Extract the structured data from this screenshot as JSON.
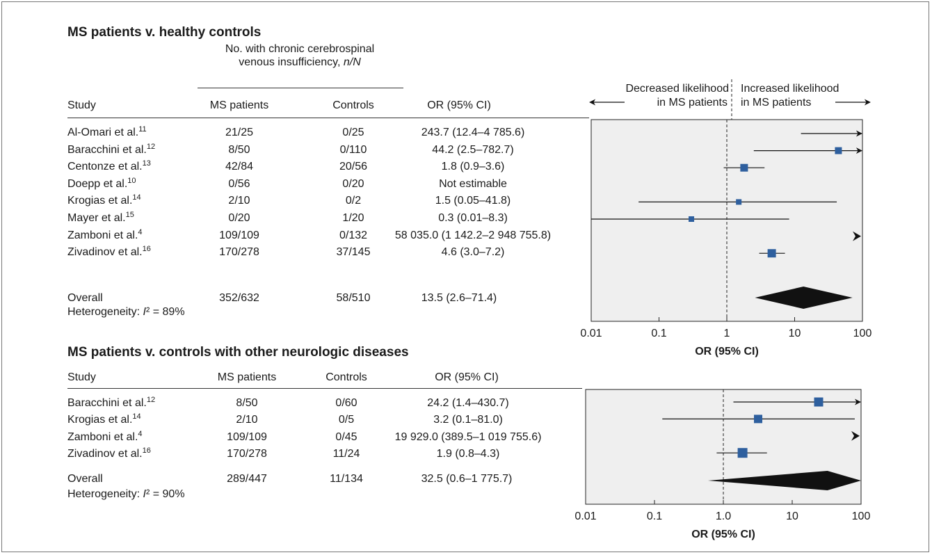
{
  "chart_data": [
    {
      "type": "table",
      "title": "MS patients v. healthy controls",
      "group_header": "No. with chronic cerebrospinal",
      "group_header_line2_prefix": "venous insufficiency, ",
      "group_header_line2_italic": "n/N",
      "columns": [
        "Study",
        "MS patients",
        "Controls",
        "OR (95% CI)"
      ],
      "direction_labels": {
        "left_line1": "Decreased likelihood",
        "left_line2": "in MS patients",
        "right_line1": "Increased likelihood",
        "right_line2": "in MS patients"
      },
      "rows": [
        {
          "study": "Al-Omari et al.",
          "ref": "11",
          "ms": "21/25",
          "controls": "0/25",
          "or_text": "243.7 (12.4–4 785.6)",
          "or": 243.7,
          "lo": 12.4,
          "hi": 4785.6
        },
        {
          "study": "Baracchini et al.",
          "ref": "12",
          "ms": "8/50",
          "controls": "0/110",
          "or_text": "44.2 (2.5–782.7)",
          "or": 44.2,
          "lo": 2.5,
          "hi": 782.7
        },
        {
          "study": "Centonze et al.",
          "ref": "13",
          "ms": "42/84",
          "controls": "20/56",
          "or_text": "1.8 (0.9–3.6)",
          "or": 1.8,
          "lo": 0.9,
          "hi": 3.6
        },
        {
          "study": "Doepp et al.",
          "ref": "10",
          "ms": "0/56",
          "controls": "0/20",
          "or_text": "Not estimable",
          "or": null,
          "lo": null,
          "hi": null
        },
        {
          "study": "Krogias et al.",
          "ref": "14",
          "ms": "2/10",
          "controls": "0/2",
          "or_text": "1.5 (0.05–41.8)",
          "or": 1.5,
          "lo": 0.05,
          "hi": 41.8
        },
        {
          "study": "Mayer et al.",
          "ref": "15",
          "ms": "0/20",
          "controls": "1/20",
          "or_text": "0.3 (0.01–8.3)",
          "or": 0.3,
          "lo": 0.01,
          "hi": 8.3
        },
        {
          "study": "Zamboni et al.",
          "ref": "4",
          "ms": "109/109",
          "controls": "0/132",
          "or_text": "58 035.0 (1 142.2–2 948 755.8)",
          "or": 58035.0,
          "lo": 1142.2,
          "hi": 2948755.8
        },
        {
          "study": "Zivadinov et al.",
          "ref": "16",
          "ms": "170/278",
          "controls": "37/145",
          "or_text": "4.6 (3.0–7.2)",
          "or": 4.6,
          "lo": 3.0,
          "hi": 7.2
        }
      ],
      "overall": {
        "label": "Overall",
        "ms": "352/632",
        "controls": "58/510",
        "or_text": "13.5 (2.6–71.4)",
        "or": 13.5,
        "lo": 2.6,
        "hi": 71.4
      },
      "heterogeneity_prefix": "Heterogeneity: ",
      "heterogeneity_symbol": "I",
      "heterogeneity_suffix": "² = 89%",
      "axis": {
        "scale": "log",
        "range": [
          0.01,
          100
        ],
        "ticks": [
          "0.01",
          "0.1",
          "1",
          "10",
          "100"
        ],
        "tick_values": [
          0.01,
          0.1,
          1,
          10,
          100
        ],
        "reference": 1
      },
      "xlabel": "OR (95% CI)"
    },
    {
      "type": "table",
      "title": "MS patients v. controls with other neurologic diseases",
      "columns": [
        "Study",
        "MS patients",
        "Controls",
        "OR (95% CI)"
      ],
      "rows": [
        {
          "study": "Baracchini et al.",
          "ref": "12",
          "ms": "8/50",
          "controls": "0/60",
          "or_text": "24.2 (1.4–430.7)",
          "or": 24.2,
          "lo": 1.4,
          "hi": 430.7
        },
        {
          "study": "Krogias et al.",
          "ref": "14",
          "ms": "2/10",
          "controls": "0/5",
          "or_text": "3.2 (0.1–81.0)",
          "or": 3.2,
          "lo": 0.13,
          "hi": 81.0
        },
        {
          "study": "Zamboni et al.",
          "ref": "4",
          "ms": "109/109",
          "controls": "0/45",
          "or_text": "19 929.0 (389.5–1 019 755.6)",
          "or": 19929.0,
          "lo": 389.5,
          "hi": 1019755.6
        },
        {
          "study": "Zivadinov et al.",
          "ref": "16",
          "ms": "170/278",
          "controls": "11/24",
          "or_text": "1.9 (0.8–4.3)",
          "or": 1.9,
          "lo": 0.8,
          "hi": 4.3
        }
      ],
      "overall": {
        "label": "Overall",
        "ms": "289/447",
        "controls": "11/134",
        "or_text": "32.5 (0.6–1 775.7)",
        "or": 32.5,
        "lo": 0.6,
        "hi": 1775.7
      },
      "heterogeneity_prefix": "Heterogeneity: ",
      "heterogeneity_symbol": "I",
      "heterogeneity_suffix": "² = 90%",
      "axis": {
        "scale": "log",
        "range": [
          0.01,
          100
        ],
        "ticks": [
          "0.01",
          "0.1",
          "1.0",
          "10",
          "100"
        ],
        "tick_values": [
          0.01,
          0.1,
          1,
          10,
          100
        ],
        "reference": 1
      },
      "xlabel": "OR (95% CI)"
    }
  ],
  "colors": {
    "marker": "#2e5f9e",
    "diamond": "#111111",
    "panel": "#efefef",
    "text": "#1a1a1a"
  }
}
